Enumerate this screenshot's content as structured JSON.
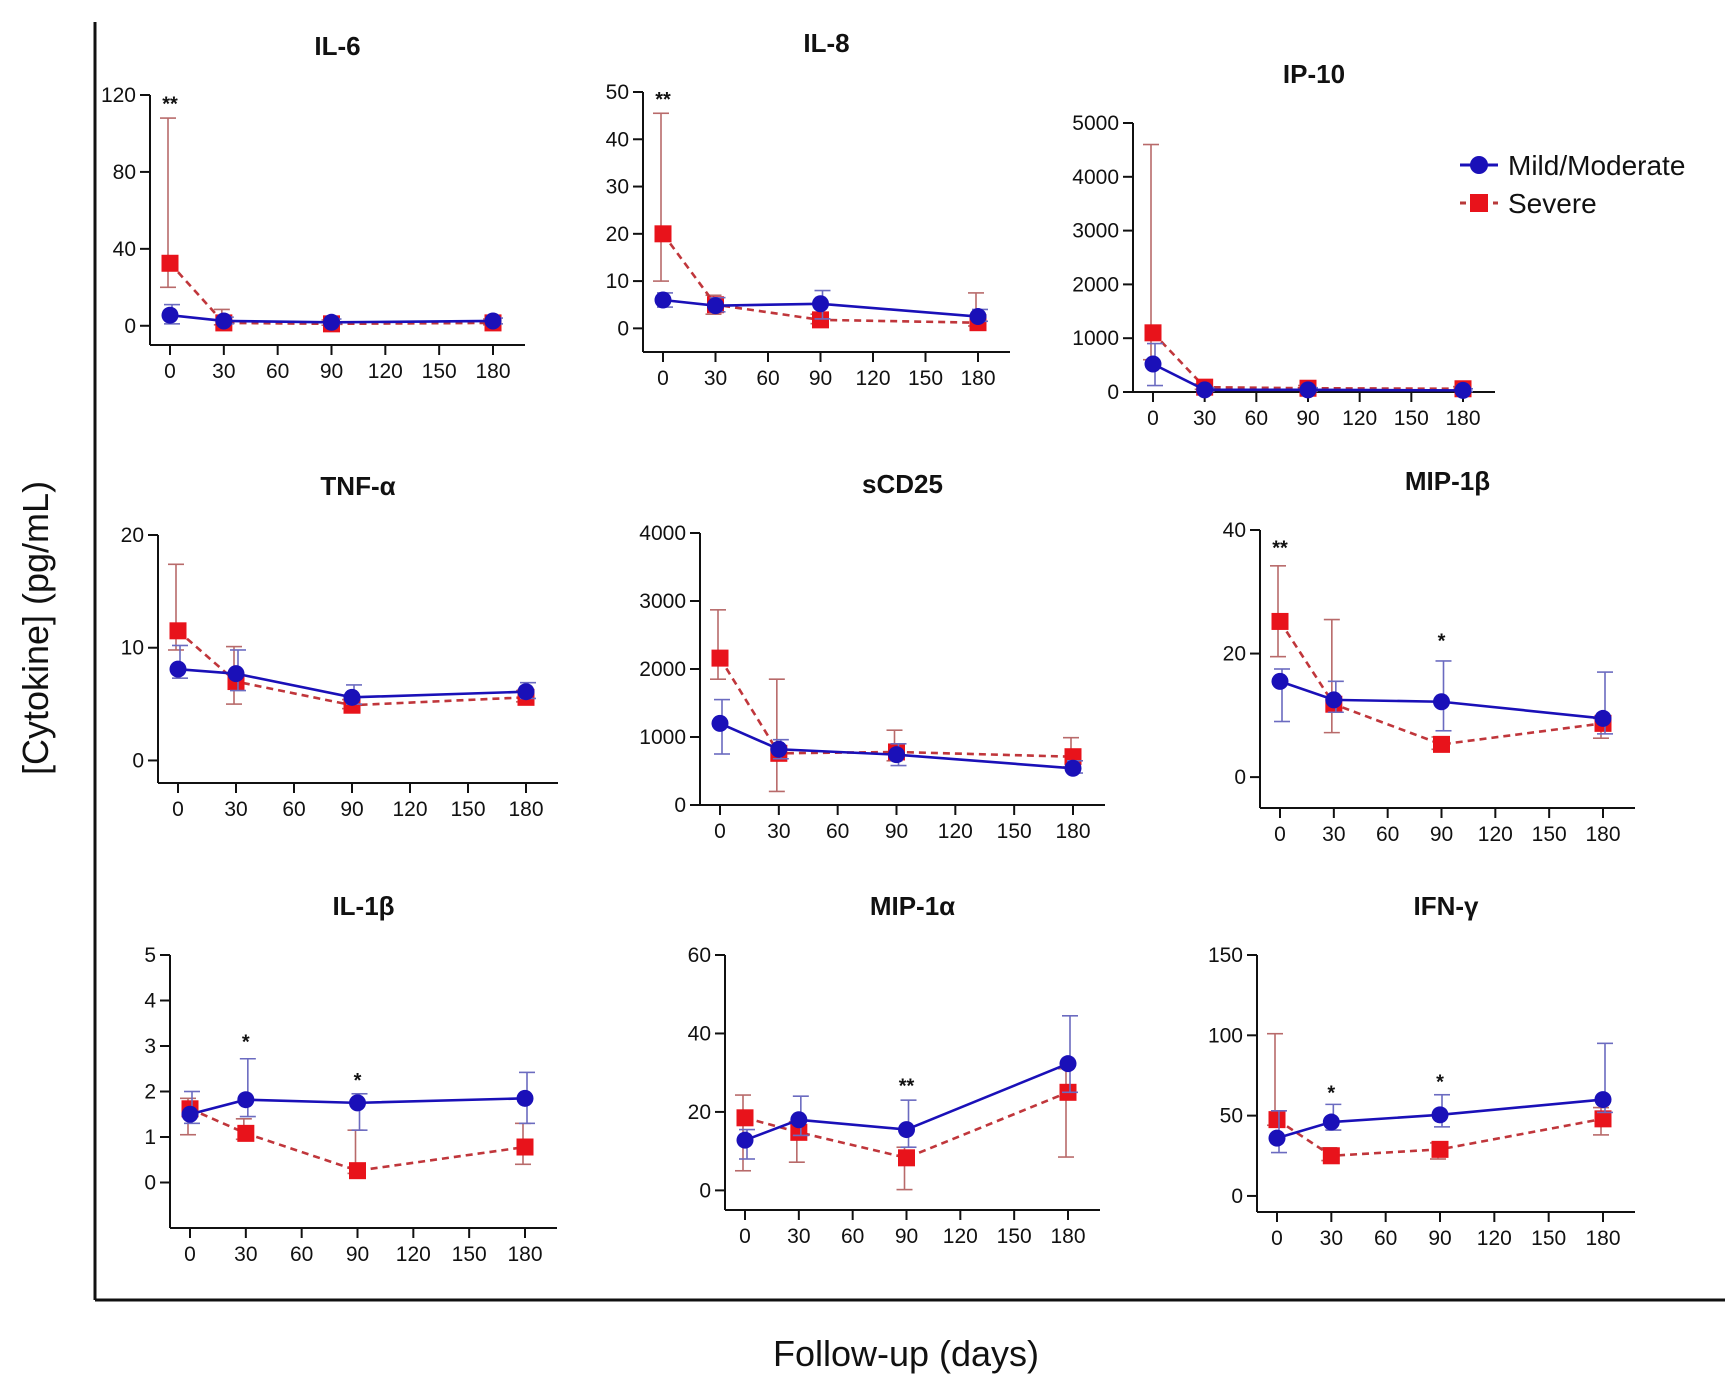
{
  "figure": {
    "ylabel": "[Cytokine] (pg/mL)",
    "xlabel": "Follow-up (days)",
    "legend": {
      "placement": "top-right",
      "items": [
        "Mild/Moderate",
        "Severe"
      ]
    },
    "colors": {
      "mild": "#1a10b8",
      "severe": "#e8131b",
      "mild_err": "#6b6bc0",
      "severe_err": "#b86a6a",
      "axis": "#111111"
    }
  },
  "chart_data": [
    {
      "type": "line",
      "title": "IL-6",
      "x": [
        0,
        30,
        90,
        180
      ],
      "xticks": [
        0,
        30,
        60,
        90,
        120,
        150,
        180
      ],
      "xlim": [
        -5,
        200
      ],
      "ylim": [
        -10,
        120
      ],
      "yticks": [
        0,
        40,
        80,
        120
      ],
      "series": [
        {
          "name": "Mild/Moderate",
          "values": [
            5.5,
            2.5,
            1.8,
            2.5
          ],
          "err_upper": [
            11,
            4.5,
            3.5,
            4
          ],
          "err_lower": [
            1,
            1,
            1,
            1
          ]
        },
        {
          "name": "Severe",
          "values": [
            32.5,
            1.5,
            1.0,
            1.5
          ],
          "err_upper": [
            108,
            8.5,
            3,
            3.5
          ],
          "err_lower": [
            20,
            0.5,
            0.3,
            0.5
          ]
        }
      ],
      "annotations": [
        {
          "x": 0,
          "y": 112,
          "text": "**"
        }
      ]
    },
    {
      "type": "line",
      "title": "IL-8",
      "x": [
        0,
        30,
        90,
        180
      ],
      "xticks": [
        0,
        30,
        60,
        90,
        120,
        150,
        180
      ],
      "xlim": [
        -5,
        200
      ],
      "ylim": [
        -5,
        50
      ],
      "yticks": [
        0,
        10,
        20,
        30,
        40,
        50
      ],
      "series": [
        {
          "name": "Mild/Moderate",
          "values": [
            6,
            4.8,
            5.2,
            2.5
          ],
          "err_upper": [
            7.5,
            6.5,
            8,
            4
          ],
          "err_lower": [
            4.5,
            3.5,
            2,
            1.5
          ]
        },
        {
          "name": "Severe",
          "values": [
            20,
            5,
            1.8,
            1.2
          ],
          "err_upper": [
            45.5,
            7,
            3,
            7.5
          ],
          "err_lower": [
            10,
            3,
            1,
            0.5
          ]
        }
      ],
      "annotations": [
        {
          "x": 0,
          "y": 47,
          "text": "**"
        }
      ]
    },
    {
      "type": "line",
      "title": "IP-10",
      "x": [
        0,
        30,
        90,
        180
      ],
      "xticks": [
        0,
        30,
        60,
        90,
        120,
        150,
        180
      ],
      "xlim": [
        -5,
        200
      ],
      "ylim": [
        0,
        5000
      ],
      "yticks": [
        0,
        1000,
        2000,
        3000,
        4000,
        5000
      ],
      "series": [
        {
          "name": "Mild/Moderate",
          "values": [
            520,
            40,
            40,
            30
          ],
          "err_upper": [
            900,
            80,
            80,
            60
          ],
          "err_lower": [
            120,
            20,
            20,
            10
          ]
        },
        {
          "name": "Severe",
          "values": [
            1100,
            90,
            70,
            60
          ],
          "err_upper": [
            4600,
            150,
            120,
            100
          ],
          "err_lower": [
            600,
            50,
            40,
            30
          ]
        }
      ],
      "annotations": []
    },
    {
      "type": "line",
      "title": "TNF-α",
      "x": [
        0,
        30,
        90,
        180
      ],
      "xticks": [
        0,
        30,
        60,
        90,
        120,
        150,
        180
      ],
      "xlim": [
        -5,
        200
      ],
      "ylim": [
        -2,
        20
      ],
      "yticks": [
        0,
        10,
        20
      ],
      "series": [
        {
          "name": "Mild/Moderate",
          "values": [
            8.1,
            7.7,
            5.6,
            6.1
          ],
          "err_upper": [
            10.2,
            9.8,
            6.7,
            6.9
          ],
          "err_lower": [
            7.3,
            6.2,
            5.0,
            5.5
          ]
        },
        {
          "name": "Severe",
          "values": [
            11.5,
            7.0,
            4.9,
            5.6
          ],
          "err_upper": [
            17.4,
            10.1,
            5.4,
            6.2
          ],
          "err_lower": [
            9.8,
            5.0,
            4.6,
            5.2
          ]
        }
      ],
      "annotations": []
    },
    {
      "type": "line",
      "title": "sCD25",
      "x": [
        0,
        30,
        90,
        180
      ],
      "xticks": [
        0,
        30,
        60,
        90,
        120,
        150,
        180
      ],
      "xlim": [
        -5,
        200
      ],
      "ylim": [
        0,
        4000
      ],
      "yticks": [
        0,
        1000,
        2000,
        3000,
        4000
      ],
      "series": [
        {
          "name": "Mild/Moderate",
          "values": [
            1200,
            820,
            740,
            540
          ],
          "err_upper": [
            1550,
            960,
            900,
            650
          ],
          "err_lower": [
            750,
            680,
            580,
            470
          ]
        },
        {
          "name": "Severe",
          "values": [
            2160,
            760,
            780,
            710
          ],
          "err_upper": [
            2870,
            1850,
            1100,
            990
          ],
          "err_lower": [
            1850,
            200,
            650,
            560
          ]
        }
      ],
      "annotations": []
    },
    {
      "type": "line",
      "title": "MIP-1β",
      "x": [
        0,
        30,
        90,
        180
      ],
      "xticks": [
        0,
        30,
        60,
        90,
        120,
        150,
        180
      ],
      "xlim": [
        -5,
        200
      ],
      "ylim": [
        -5,
        40
      ],
      "yticks": [
        0,
        20,
        40
      ],
      "series": [
        {
          "name": "Mild/Moderate",
          "values": [
            15.5,
            12.5,
            12.2,
            9.5
          ],
          "err_upper": [
            17.5,
            15.5,
            18.8,
            17
          ],
          "err_lower": [
            9,
            10.5,
            7.5,
            7
          ]
        },
        {
          "name": "Severe",
          "values": [
            25.2,
            11.8,
            5.3,
            8.7
          ],
          "err_upper": [
            34.2,
            25.5,
            6.5,
            9.5
          ],
          "err_lower": [
            19.5,
            7.2,
            4.5,
            6.3
          ]
        }
      ],
      "annotations": [
        {
          "x": 0,
          "y": 36,
          "text": "**"
        },
        {
          "x": 90,
          "y": 21,
          "text": "*"
        }
      ]
    },
    {
      "type": "line",
      "title": "IL-1β",
      "x": [
        0,
        30,
        90,
        180
      ],
      "xticks": [
        0,
        30,
        60,
        90,
        120,
        150,
        180
      ],
      "xlim": [
        -5,
        200
      ],
      "ylim": [
        -1,
        5
      ],
      "yticks": [
        0,
        1,
        2,
        3,
        4,
        5
      ],
      "series": [
        {
          "name": "Mild/Moderate",
          "values": [
            1.5,
            1.82,
            1.75,
            1.85
          ],
          "err_upper": [
            2.0,
            2.72,
            1.95,
            2.42
          ],
          "err_lower": [
            1.3,
            1.45,
            1.15,
            1.3
          ]
        },
        {
          "name": "Severe",
          "values": [
            1.62,
            1.08,
            0.26,
            0.78
          ],
          "err_upper": [
            1.85,
            1.4,
            1.15,
            1.3
          ],
          "err_lower": [
            1.05,
            0.95,
            0.2,
            0.4
          ]
        }
      ],
      "annotations": [
        {
          "x": 30,
          "y": 2.95,
          "text": "*"
        },
        {
          "x": 90,
          "y": 2.1,
          "text": "*"
        }
      ]
    },
    {
      "type": "line",
      "title": "MIP-1α",
      "x": [
        0,
        30,
        90,
        180
      ],
      "xticks": [
        0,
        30,
        60,
        90,
        120,
        150,
        180
      ],
      "xlim": [
        -5,
        200
      ],
      "ylim": [
        -5,
        60
      ],
      "yticks": [
        0,
        20,
        40,
        60
      ],
      "series": [
        {
          "name": "Mild/Moderate",
          "values": [
            12.8,
            18,
            15.5,
            32.3
          ],
          "err_upper": [
            15.5,
            24,
            23,
            44.5
          ],
          "err_lower": [
            8,
            14,
            11,
            25
          ]
        },
        {
          "name": "Severe",
          "values": [
            18.5,
            14.8,
            8.3,
            25
          ],
          "err_upper": [
            24.3,
            17.5,
            11,
            31
          ],
          "err_lower": [
            5,
            7.2,
            0.2,
            8.5
          ]
        }
      ],
      "annotations": [
        {
          "x": 90,
          "y": 25,
          "text": "**"
        }
      ]
    },
    {
      "type": "line",
      "title": "IFN-γ",
      "x": [
        0,
        30,
        90,
        180
      ],
      "xticks": [
        0,
        30,
        60,
        90,
        120,
        150,
        180
      ],
      "xlim": [
        -5,
        200
      ],
      "ylim": [
        -10,
        150
      ],
      "yticks": [
        0,
        50,
        100,
        150
      ],
      "series": [
        {
          "name": "Mild/Moderate",
          "values": [
            36,
            46,
            50.5,
            60
          ],
          "err_upper": [
            53,
            57,
            63,
            95
          ],
          "err_lower": [
            27,
            41,
            43,
            52
          ]
        },
        {
          "name": "Severe",
          "values": [
            47.5,
            25,
            29,
            48
          ],
          "err_upper": [
            101,
            30,
            33,
            55
          ],
          "err_lower": [
            44,
            22,
            23,
            38
          ]
        }
      ],
      "annotations": [
        {
          "x": 30,
          "y": 60,
          "text": "*"
        },
        {
          "x": 90,
          "y": 67,
          "text": "*"
        }
      ]
    }
  ]
}
